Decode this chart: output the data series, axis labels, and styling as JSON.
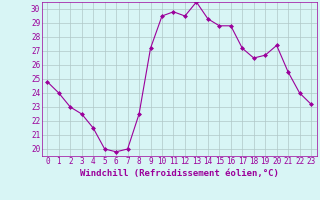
{
  "x": [
    0,
    1,
    2,
    3,
    4,
    5,
    6,
    7,
    8,
    9,
    10,
    11,
    12,
    13,
    14,
    15,
    16,
    17,
    18,
    19,
    20,
    21,
    22,
    23
  ],
  "y": [
    24.8,
    24.0,
    23.0,
    22.5,
    21.5,
    20.0,
    19.8,
    20.0,
    22.5,
    27.2,
    29.5,
    29.8,
    29.5,
    30.5,
    29.3,
    28.8,
    28.8,
    27.2,
    26.5,
    26.7,
    27.4,
    25.5,
    24.0,
    23.2
  ],
  "line_color": "#9b009b",
  "marker": "D",
  "marker_size": 2,
  "bg_color": "#d8f5f5",
  "grid_color": "#b0c8c8",
  "xlabel": "Windchill (Refroidissement éolien,°C)",
  "xlim": [
    -0.5,
    23.5
  ],
  "ylim": [
    19.5,
    30.5
  ],
  "yticks": [
    20,
    21,
    22,
    23,
    24,
    25,
    26,
    27,
    28,
    29,
    30
  ],
  "xticks": [
    0,
    1,
    2,
    3,
    4,
    5,
    6,
    7,
    8,
    9,
    10,
    11,
    12,
    13,
    14,
    15,
    16,
    17,
    18,
    19,
    20,
    21,
    22,
    23
  ],
  "tick_fontsize": 5.5,
  "xlabel_fontsize": 6.5
}
